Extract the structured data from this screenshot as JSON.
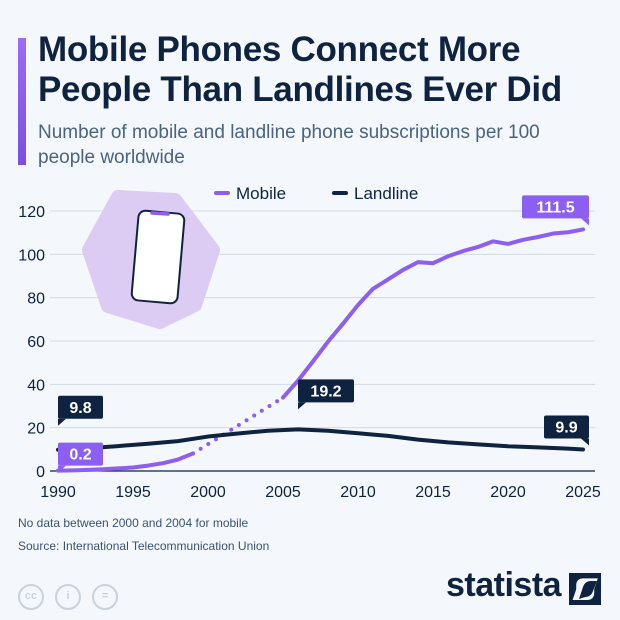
{
  "title": "Mobile Phones Connect More People Than Landlines Ever Did",
  "subtitle": "Number of mobile and landline phone subscriptions per 100 people worldwide",
  "note": "No data between 2000 and 2004 for mobile",
  "source": "Source: International Telecommunication Union",
  "brand": "statista",
  "license_icons": [
    "cc-icon",
    "attribution-icon",
    "no-derivatives-icon"
  ],
  "chart_data": {
    "type": "line",
    "title": "",
    "xlabel": "",
    "ylabel": "",
    "xlim": [
      1990,
      2025
    ],
    "ylim": [
      0,
      120
    ],
    "x_ticks": [
      "1990",
      "1995",
      "2000",
      "2005",
      "2010",
      "2015",
      "2020",
      "2025"
    ],
    "y_ticks": [
      "0",
      "20",
      "40",
      "60",
      "80",
      "100",
      "120"
    ],
    "grid": true,
    "legend": "top-center",
    "series": [
      {
        "name": "Mobile",
        "color": "#8c5ef2",
        "x": [
          1990,
          1991,
          1992,
          1993,
          1994,
          1995,
          1996,
          1997,
          1998,
          1999,
          2005,
          2006,
          2007,
          2008,
          2009,
          2010,
          2011,
          2012,
          2013,
          2014,
          2015,
          2016,
          2017,
          2018,
          2019,
          2020,
          2021,
          2022,
          2023,
          2024,
          2025
        ],
        "y": [
          0.2,
          0.3,
          0.5,
          0.8,
          1.2,
          1.6,
          2.5,
          3.6,
          5.3,
          8.1,
          33.9,
          41.7,
          50.6,
          59.7,
          68.0,
          76.6,
          84.1,
          88.4,
          92.8,
          96.4,
          95.9,
          99.1,
          101.5,
          103.4,
          106.0,
          104.8,
          106.7,
          108.0,
          109.6,
          110.2,
          111.5
        ],
        "gap": [
          1999,
          2005
        ]
      },
      {
        "name": "Landline",
        "color": "#0f2340",
        "x": [
          1990,
          1992,
          1994,
          1996,
          1998,
          2000,
          2002,
          2004,
          2006,
          2008,
          2010,
          2012,
          2014,
          2016,
          2018,
          2020,
          2022,
          2024,
          2025
        ],
        "y": [
          9.8,
          10.5,
          11.5,
          12.6,
          13.8,
          15.9,
          17.3,
          18.6,
          19.2,
          18.6,
          17.4,
          16.2,
          14.5,
          13.2,
          12.3,
          11.4,
          10.9,
          10.3,
          9.9
        ]
      }
    ],
    "annotations": [
      {
        "series": "Landline",
        "x": 1990,
        "label": "9.8"
      },
      {
        "series": "Mobile",
        "x": 1990,
        "label": "0.2"
      },
      {
        "series": "Landline",
        "x": 2006,
        "label": "19.2"
      },
      {
        "series": "Landline",
        "x": 2025,
        "label": "9.9"
      },
      {
        "series": "Mobile",
        "x": 2025,
        "label": "111.5"
      }
    ]
  }
}
